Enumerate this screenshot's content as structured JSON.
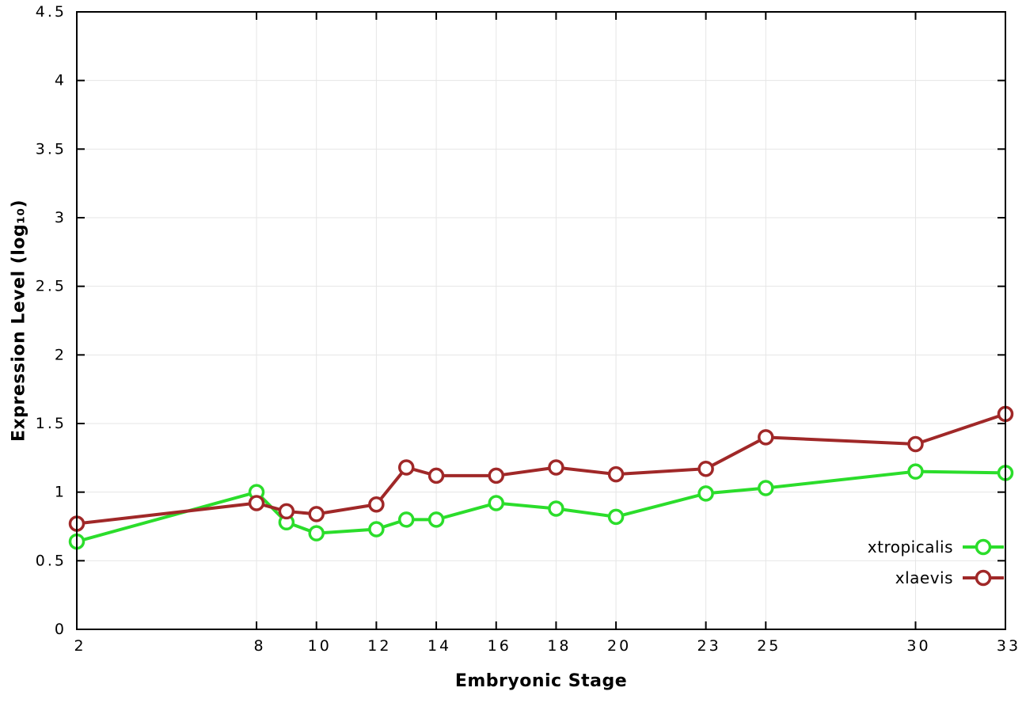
{
  "figure": {
    "background": "#ffffff",
    "axis_color": "#000000",
    "grid_color": "#e6e6e6"
  },
  "labels": {
    "y": "Expression Level (log₁₀)",
    "x": "Embryonic Stage"
  },
  "chart_data": {
    "type": "line",
    "title": "",
    "xlabel": "Embryonic Stage",
    "ylabel": "Expression Level (log10)",
    "grid": true,
    "legend_position": "bottom-right",
    "xlim": [
      2,
      33
    ],
    "ylim": [
      0,
      4.5
    ],
    "x_ticks": [
      "2",
      "8",
      "10",
      "12",
      "14",
      "16",
      "18",
      "20",
      "23",
      "25",
      "30",
      "33"
    ],
    "x_tick_values": [
      2,
      8,
      10,
      12,
      14,
      16,
      18,
      20,
      23,
      25,
      30,
      33
    ],
    "y_ticks": [
      "0",
      "0.5",
      "1",
      "1.5",
      "2",
      "2.5",
      "3",
      "3.5",
      "4",
      "4.5"
    ],
    "y_tick_values": [
      0,
      0.5,
      1,
      1.5,
      2,
      2.5,
      3,
      3.5,
      4,
      4.5
    ],
    "x": [
      2,
      8,
      9,
      10,
      12,
      13,
      14,
      16,
      18,
      20,
      23,
      25,
      30,
      33
    ],
    "series": [
      {
        "name": "xtropicalis",
        "color": "#2bdd2b",
        "values": [
          0.64,
          1.0,
          0.78,
          0.7,
          0.73,
          0.8,
          0.8,
          0.92,
          0.88,
          0.82,
          0.99,
          1.03,
          1.15,
          1.14
        ]
      },
      {
        "name": "xlaevis",
        "color": "#a02828",
        "values": [
          0.77,
          0.92,
          0.86,
          0.84,
          0.91,
          1.18,
          1.12,
          1.12,
          1.18,
          1.13,
          1.17,
          1.4,
          1.35,
          1.57
        ]
      }
    ]
  }
}
